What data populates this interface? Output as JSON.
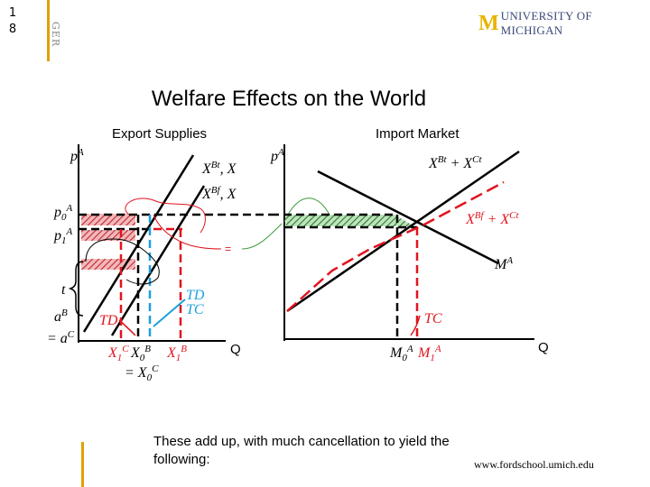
{
  "slide_number": "1\n8",
  "ger": "GER",
  "logo": {
    "mark": "M",
    "text": "UNIVERSITY OF MICHIGAN"
  },
  "title": "Welfare Effects on the World",
  "panels": {
    "left_title": "Export Supplies",
    "right_title": "Import Market"
  },
  "labels": {
    "pA_left": "p",
    "pA_left_sup": "A",
    "XBt": "X",
    "XBt_sup": "Bt",
    "XBt_tail": ", X",
    "XBf": "X",
    "XBf_sup": "Bf",
    "XBf_tail": ", X",
    "p0A": "p",
    "p0A_sub": "0",
    "p0A_sup": "A",
    "p1A": "p",
    "p1A_sub": "1",
    "p1A_sup": "A",
    "t": "t",
    "aB": "a",
    "aB_sup": "B",
    "eq_aC": "= a",
    "eq_aC_sup": "C",
    "TD_left": "TD",
    "TD_mid": "TD",
    "TC_mid": "TC",
    "X1C": "X",
    "X1C_sub": "1",
    "X1C_sup": "C",
    "X0B": "X",
    "X0B_sub": "0",
    "X0B_sup": "B",
    "X1B": "X",
    "X1B_sub": "1",
    "X1B_sup": "B",
    "eq_X0C": "= X",
    "eq_X0C_sub": "0",
    "eq_X0C_sup": "C",
    "Q_left": "Q",
    "equals_mark": "=",
    "pA_right": "p",
    "pA_right_sup": "A",
    "XBt_XCt": "X",
    "XBt_XCt_sup1": "Bt",
    "XBt_XCt_mid": " + X",
    "XBt_XCt_sup2": "Ct",
    "XBf_XCt": "X",
    "XBf_XCt_sup1": "Bf",
    "XBf_XCt_mid": " + X",
    "XBf_XCt_sup2": "Ct",
    "MA": "M",
    "MA_sup": "A",
    "TC_right": "TC",
    "M0A": "M",
    "M0A_sub": "0",
    "M0A_sup": "A",
    "M1A": "M",
    "M1A_sub": "1",
    "M1A_sup": "A",
    "Q_right": "Q"
  },
  "caption": "These add up, with much cancellation to yield the following:",
  "url": "www.fordschool.umich.edu",
  "colors": {
    "red": "#e0141e",
    "blue": "#1aa0e0",
    "green": "#3a9a3a",
    "hatch_red": "#c0282e",
    "gold": "#e0a000",
    "navy": "#3a4a7a"
  }
}
